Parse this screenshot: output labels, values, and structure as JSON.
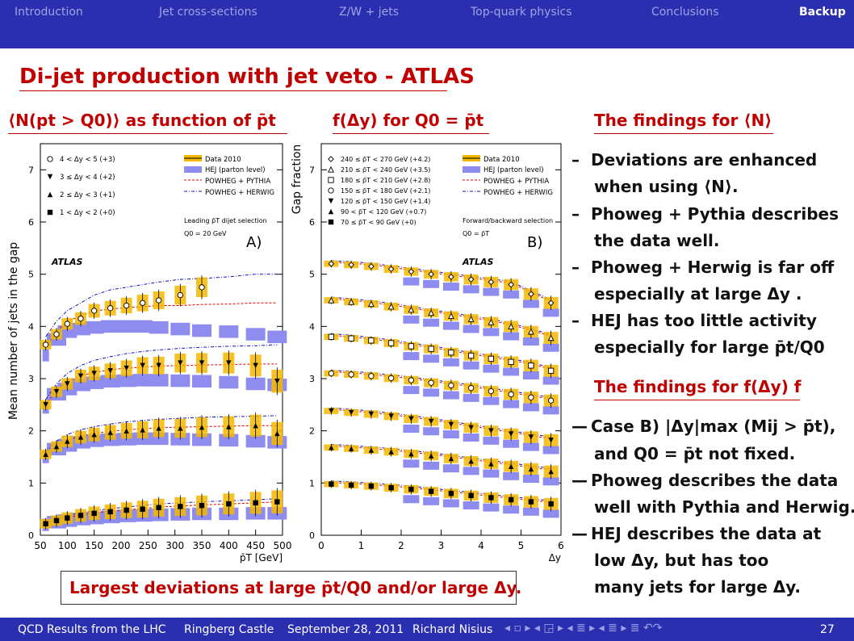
{
  "nav": {
    "items": [
      "Introduction",
      "Jet cross-sections",
      "Z/W + jets",
      "Top-quark physics",
      "Conclusions",
      "Backup"
    ],
    "active": "Backup"
  },
  "title": "Di-jet production with jet veto - ATLAS",
  "left_heading": "⟨N(pt > Q0)⟩ as function of p̄t",
  "middle_heading": "f(Δy) for Q0 = p̄t",
  "findings_N_heading": "The findings for ⟨N⟩",
  "findings_N": [
    {
      "line1": "Deviations are enhanced",
      "line2": "when using ⟨N⟩."
    },
    {
      "line1": "Phoweg + Pythia describes",
      "line2": "the data well."
    },
    {
      "line1": "Phoweg + Herwig is far off",
      "line2": "especially at large Δy ."
    },
    {
      "line1": "HEJ has too little activity",
      "line2": "especially for large p̄t/Q0"
    }
  ],
  "findings_f_heading": "The findings for f(Δy) f",
  "findings_f": [
    {
      "line1": "Case B) |Δy|max (Mij > p̄t),",
      "line2": "and Q0 = p̄t not fixed."
    },
    {
      "line1": "Phoweg describes the data",
      "line2": "well with Pythia and Herwig."
    },
    {
      "line1": "HEJ describes the data at",
      "line2": "low Δy, but has too"
    },
    {
      "line1": "",
      "line2": "many jets for large Δy."
    }
  ],
  "box_text": "Largest deviations at large p̄t/Q0 and/or large Δy.",
  "footer": {
    "talk": "QCD Results from the LHC",
    "place": "Ringberg Castle",
    "date": "September 28, 2011",
    "author": "Richard Nisius",
    "nav_symbols": "◂ ▫ ▸ ◂ ◲ ▸ ◂ ≣ ▸ ◂ ≣ ▸ ≣ ↶↷",
    "page": "27"
  },
  "colors": {
    "bar": "#2a2fb0",
    "accent": "#c00000",
    "data_band": "#f5b800",
    "hej_band": "#8f8cf0",
    "pythia": "#e00000",
    "herwig": "#1010c0"
  },
  "chart_data": [
    {
      "type": "line",
      "panel_label": "A)",
      "experiment": "ATLAS",
      "ylabel": "Mean number of jets in the gap",
      "xlabel": "p̄T [GeV]",
      "xlim": [
        50,
        500
      ],
      "ylim": [
        0,
        7.5
      ],
      "xticks": [
        50,
        100,
        150,
        200,
        250,
        300,
        350,
        400,
        450,
        500
      ],
      "yticks": [
        0,
        1,
        2,
        3,
        4,
        5,
        6,
        7
      ],
      "legend_left": [
        "4 < Δy < 5 (+3)",
        "3 ≤ Δy < 4 (+2)",
        "2 ≤ Δy < 3 (+1)",
        "1 < Δy < 2 (+0)"
      ],
      "legend_right": [
        "Data 2010",
        "HEJ (parton level)",
        "POWHEG + PYTHIA",
        "POWHEG + HERWIG"
      ],
      "notes": [
        "Leading p̄T dijet selection",
        "Q0 = 20 GeV"
      ],
      "x": [
        60,
        80,
        100,
        125,
        150,
        180,
        210,
        240,
        270,
        310,
        350,
        400,
        450,
        490
      ],
      "series": [
        {
          "name": "4 < Δy < 5 (+3)",
          "marker": "circle-open",
          "data": [
            3.65,
            3.85,
            4.05,
            4.15,
            4.3,
            4.35,
            4.4,
            4.45,
            4.5,
            4.6,
            4.75,
            null,
            null,
            null
          ],
          "hej": [
            3.45,
            3.75,
            3.9,
            3.95,
            3.98,
            4.0,
            4.0,
            4.0,
            3.98,
            3.95,
            3.92,
            3.9,
            3.85,
            3.8
          ],
          "pythia": [
            3.6,
            3.9,
            4.1,
            4.2,
            4.3,
            4.33,
            4.36,
            4.38,
            4.4,
            4.4,
            4.42,
            4.43,
            4.45,
            4.45
          ],
          "herwig": [
            3.8,
            4.1,
            4.3,
            4.45,
            4.6,
            4.7,
            4.75,
            4.8,
            4.85,
            4.9,
            4.92,
            4.95,
            5.0,
            5.0
          ]
        },
        {
          "name": "3 ≤ Δy < 4 (+2)",
          "marker": "triangle-down",
          "data": [
            2.5,
            2.75,
            2.9,
            3.05,
            3.1,
            3.15,
            3.2,
            3.25,
            3.25,
            3.3,
            3.3,
            3.3,
            3.25,
            2.95
          ],
          "hej": [
            2.45,
            2.7,
            2.8,
            2.88,
            2.92,
            2.95,
            2.96,
            2.97,
            2.97,
            2.96,
            2.95,
            2.93,
            2.9,
            2.88
          ],
          "pythia": [
            2.5,
            2.78,
            2.95,
            3.05,
            3.12,
            3.17,
            3.2,
            3.22,
            3.24,
            3.25,
            3.26,
            3.27,
            3.28,
            3.28
          ],
          "herwig": [
            2.6,
            2.9,
            3.1,
            3.25,
            3.35,
            3.42,
            3.48,
            3.52,
            3.55,
            3.58,
            3.6,
            3.62,
            3.63,
            3.65
          ]
        },
        {
          "name": "2 ≤ Δy < 3 (+1)",
          "marker": "triangle-up",
          "data": [
            1.55,
            1.7,
            1.8,
            1.88,
            1.93,
            1.97,
            2.0,
            2.02,
            2.05,
            2.05,
            2.07,
            2.08,
            2.1,
            1.95
          ],
          "hej": [
            1.5,
            1.65,
            1.72,
            1.78,
            1.81,
            1.83,
            1.84,
            1.85,
            1.85,
            1.84,
            1.83,
            1.82,
            1.8,
            1.78
          ],
          "pythia": [
            1.55,
            1.72,
            1.82,
            1.9,
            1.95,
            1.99,
            2.02,
            2.04,
            2.06,
            2.07,
            2.08,
            2.09,
            2.1,
            2.1
          ],
          "herwig": [
            1.6,
            1.8,
            1.93,
            2.02,
            2.08,
            2.13,
            2.17,
            2.2,
            2.22,
            2.24,
            2.26,
            2.27,
            2.28,
            2.29
          ]
        },
        {
          "name": "1 < Δy < 2 (+0)",
          "marker": "square",
          "data": [
            0.22,
            0.28,
            0.33,
            0.38,
            0.42,
            0.45,
            0.48,
            0.5,
            0.53,
            0.55,
            0.57,
            0.6,
            0.62,
            0.64
          ],
          "hej": [
            0.2,
            0.25,
            0.28,
            0.31,
            0.33,
            0.35,
            0.37,
            0.38,
            0.39,
            0.4,
            0.41,
            0.41,
            0.42,
            0.42
          ],
          "pythia": [
            0.23,
            0.29,
            0.34,
            0.39,
            0.43,
            0.46,
            0.49,
            0.51,
            0.54,
            0.56,
            0.58,
            0.6,
            0.62,
            0.64
          ],
          "herwig": [
            0.25,
            0.32,
            0.38,
            0.43,
            0.47,
            0.51,
            0.54,
            0.57,
            0.6,
            0.62,
            0.64,
            0.66,
            0.68,
            0.7
          ]
        }
      ]
    },
    {
      "type": "line",
      "panel_label": "B)",
      "experiment": "ATLAS",
      "ylabel": "Gap fraction",
      "xlabel": "Δy",
      "xlim": [
        0,
        6
      ],
      "ylim": [
        0,
        7.5
      ],
      "xticks": [
        0,
        1,
        2,
        3,
        4,
        5,
        6
      ],
      "yticks": [
        0,
        1,
        2,
        3,
        4,
        5,
        6,
        7
      ],
      "legend_left": [
        "240 ≤ p̄T < 270 GeV (+4.2)",
        "210 ≤ p̄T < 240 GeV (+3.5)",
        "180 ≤ p̄T < 210 GeV (+2.8)",
        "150 ≤ p̄T < 180 GeV (+2.1)",
        "120 ≤ p̄T < 150 GeV (+1.4)",
        "90 < p̄T < 120 GeV (+0.7)",
        "70 ≤ p̄T < 90 GeV (+0)"
      ],
      "legend_right": [
        "Data 2010",
        "HEJ (parton level)",
        "POWHEG + PYTHIA",
        "POWHEG + HERWIG"
      ],
      "notes": [
        "Forward/backward selection",
        "Q0 = p̄T"
      ],
      "x": [
        0.25,
        0.75,
        1.25,
        1.75,
        2.25,
        2.75,
        3.25,
        3.75,
        4.25,
        4.75,
        5.25,
        5.75
      ],
      "series": [
        {
          "name": "240–270 (+4.2)",
          "marker": "diamond-open",
          "data": [
            5.2,
            5.18,
            5.15,
            5.1,
            5.05,
            5.0,
            4.95,
            4.9,
            4.85,
            4.8,
            4.62,
            4.45
          ]
        },
        {
          "name": "210–240 (+3.5)",
          "marker": "triangle-open",
          "data": [
            4.5,
            4.47,
            4.43,
            4.38,
            4.32,
            4.26,
            4.2,
            4.14,
            4.08,
            4.0,
            3.9,
            3.78
          ]
        },
        {
          "name": "180–210 (+2.8)",
          "marker": "square-open",
          "data": [
            3.8,
            3.77,
            3.73,
            3.68,
            3.62,
            3.57,
            3.5,
            3.44,
            3.38,
            3.32,
            3.25,
            3.15
          ]
        },
        {
          "name": "150–180 (+2.1)",
          "marker": "circle-open",
          "data": [
            3.1,
            3.08,
            3.05,
            3.01,
            2.97,
            2.92,
            2.87,
            2.82,
            2.76,
            2.7,
            2.64,
            2.58
          ]
        },
        {
          "name": "120–150 (+1.4)",
          "marker": "triangle-down",
          "data": [
            2.38,
            2.35,
            2.32,
            2.28,
            2.23,
            2.18,
            2.12,
            2.06,
            2.0,
            1.94,
            1.88,
            1.82
          ]
        },
        {
          "name": "90–120 (+0.7)",
          "marker": "triangle-up",
          "data": [
            1.68,
            1.66,
            1.63,
            1.6,
            1.56,
            1.52,
            1.47,
            1.42,
            1.37,
            1.32,
            1.27,
            1.22
          ]
        },
        {
          "name": "70–90 (+0)",
          "marker": "square",
          "data": [
            0.98,
            0.96,
            0.94,
            0.91,
            0.88,
            0.84,
            0.8,
            0.76,
            0.72,
            0.68,
            0.64,
            0.6
          ]
        }
      ]
    }
  ]
}
